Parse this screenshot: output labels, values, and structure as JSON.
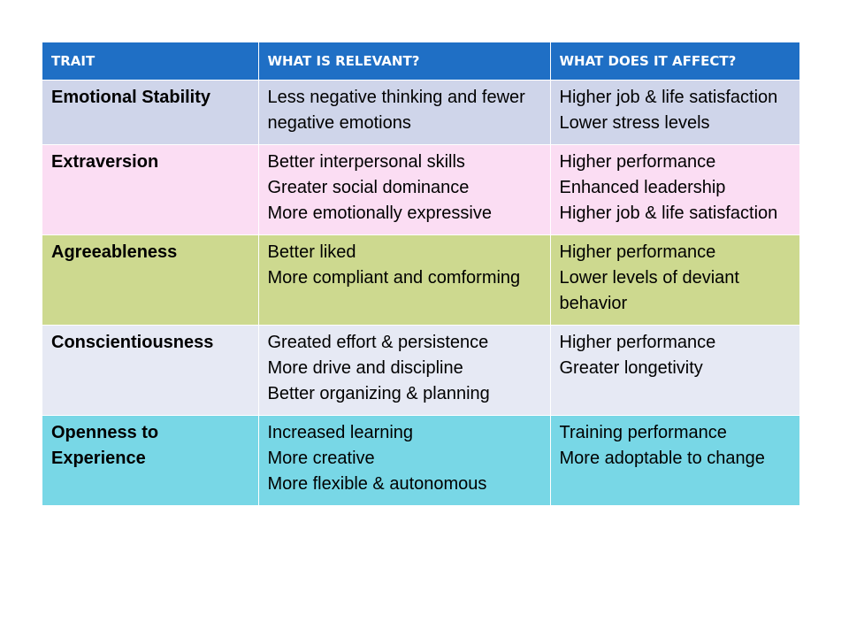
{
  "header": {
    "trait": "TRAIT",
    "relevant": "WHAT IS RELEVANT?",
    "affect": "WHAT DOES IT AFFECT?",
    "color": "#1f6fc5"
  },
  "rows": [
    {
      "trait": "Emotional Stability",
      "color": "#cfd5ea",
      "relevant": [
        "Less negative thinking and fewer negative emotions"
      ],
      "affect": [
        "Higher job & life satisfaction",
        "Lower stress levels"
      ]
    },
    {
      "trait": "Extraversion",
      "color": "#fbddf3",
      "relevant": [
        "Better interpersonal skills",
        "Greater social dominance",
        "More emotionally expressive"
      ],
      "affect": [
        "Higher performance",
        "Enhanced leadership",
        "Higher job & life satisfaction"
      ]
    },
    {
      "trait": "Agreeableness",
      "color": "#cdd98f",
      "relevant": [
        "Better liked",
        "More compliant and comforming"
      ],
      "affect": [
        "Higher performance",
        "Lower levels of deviant behavior"
      ]
    },
    {
      "trait": "Conscientiousness",
      "color": "#e6e9f4",
      "relevant": [
        "Greated effort & persistence",
        "More drive and discipline",
        "Better organizing & planning"
      ],
      "affect": [
        "Higher performance",
        "Greater longetivity"
      ]
    },
    {
      "trait": "Openness to Experience",
      "color": "#78d7e6",
      "relevant": [
        "Increased learning",
        "More creative",
        "More flexible & autonomous"
      ],
      "affect": [
        "Training performance",
        "More adoptable to change"
      ]
    }
  ]
}
